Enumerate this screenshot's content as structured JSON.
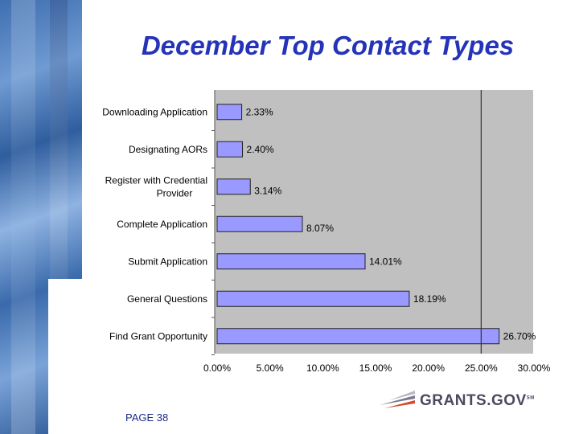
{
  "slide": {
    "title": "December Top Contact Types",
    "page_label": "PAGE 38",
    "logo_text": "GRANTS.GOV",
    "logo_mark": "SM"
  },
  "colors": {
    "title": "#2433b8",
    "bar_fill": "#9999ff",
    "plot_bg": "#c0c0c0",
    "reference_line": "#333333"
  },
  "chart_data": {
    "type": "bar",
    "orientation": "horizontal",
    "title": "December Top Contact Types",
    "categories": [
      [
        "Downloading Application"
      ],
      [
        "Designating AORs"
      ],
      [
        "Register with Credential",
        "Provider"
      ],
      [
        "Complete Application"
      ],
      [
        "Submit Application"
      ],
      [
        "General Questions"
      ],
      [
        "Find Grant Opportunity"
      ]
    ],
    "values": [
      2.33,
      2.4,
      3.14,
      8.07,
      14.01,
      18.19,
      26.7
    ],
    "value_labels": [
      "2.33%",
      "2.40%",
      "3.14%",
      "8.07%",
      "14.01%",
      "18.19%",
      "26.70%"
    ],
    "xlim": [
      0,
      30
    ],
    "x_ticks": [
      0,
      5,
      10,
      15,
      20,
      25,
      30
    ],
    "x_tick_labels": [
      "0.00%",
      "5.00%",
      "10.00%",
      "15.00%",
      "20.00%",
      "25.00%",
      "30.00%"
    ],
    "reference_line_x": 25,
    "grid": false,
    "legend": "none"
  }
}
